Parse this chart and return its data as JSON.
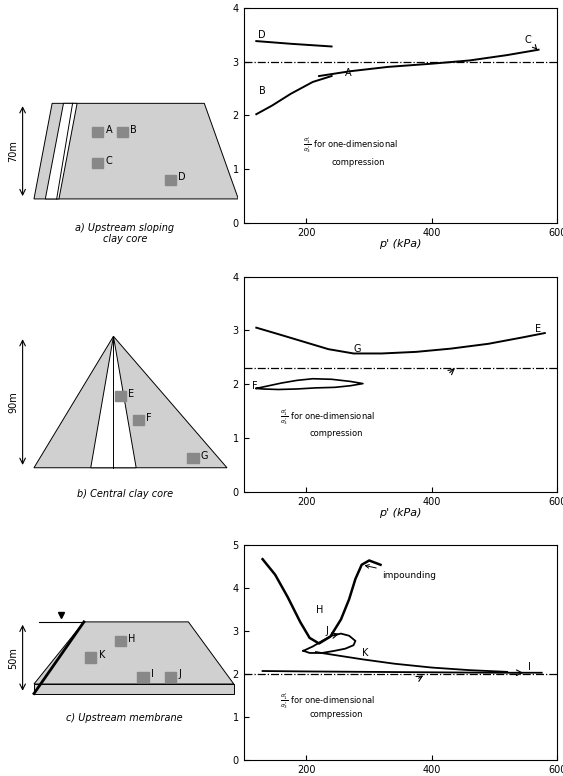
{
  "panel_a": {
    "xlabel": "p' (kPa)",
    "xlim": [
      100,
      600
    ],
    "ylim": [
      0,
      4
    ],
    "yticks": [
      0,
      1,
      2,
      3,
      4
    ],
    "xticks": [
      200,
      400,
      600
    ],
    "one_dim_R": 3.0,
    "dam_height": "70m",
    "dam_label": "a) Upstream sloping\nclay core"
  },
  "panel_b": {
    "xlabel": "p' (kPa)",
    "xlim": [
      100,
      600
    ],
    "ylim": [
      0,
      4
    ],
    "yticks": [
      0,
      1,
      2,
      3,
      4
    ],
    "xticks": [
      200,
      400,
      600
    ],
    "one_dim_R": 2.3,
    "dam_height": "90m",
    "dam_label": "b) Central clay core"
  },
  "panel_c": {
    "xlabel": "p' (kPa)",
    "xlim": [
      100,
      600
    ],
    "ylim": [
      0,
      5
    ],
    "yticks": [
      0,
      1,
      2,
      3,
      4,
      5
    ],
    "xticks": [
      200,
      400,
      600
    ],
    "one_dim_R": 2.0,
    "dam_height": "50m",
    "dam_label": "c) Upstream membrane"
  }
}
